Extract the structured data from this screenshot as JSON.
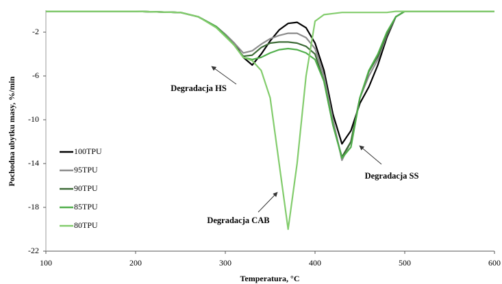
{
  "chart_data": {
    "type": "line",
    "x_label": "Temperatura, °C",
    "y_label": "Pochodna ubytku masy, %/min",
    "annotations": [
      "Degradacja HS",
      "Degradacja SS",
      "Degradacja CAB"
    ],
    "x": [
      100,
      150,
      200,
      250,
      270,
      290,
      300,
      310,
      320,
      330,
      340,
      350,
      360,
      370,
      380,
      390,
      400,
      410,
      420,
      430,
      440,
      450,
      460,
      470,
      480,
      490,
      500,
      550,
      600
    ],
    "series": [
      {
        "name": "100TPU",
        "color": "#000000",
        "values": [
          -0.1,
          -0.1,
          -0.1,
          -0.2,
          -0.6,
          -1.5,
          -2.2,
          -3.0,
          -4.3,
          -5.0,
          -4.0,
          -2.8,
          -1.8,
          -1.2,
          -1.1,
          -1.6,
          -3.0,
          -5.5,
          -9.5,
          -12.2,
          -11.0,
          -8.5,
          -7.0,
          -5.0,
          -2.5,
          -0.6,
          -0.1,
          -0.1,
          -0.1
        ]
      },
      {
        "name": "95TPU",
        "color": "#8c8c8c",
        "values": [
          -0.1,
          -0.1,
          -0.1,
          -0.2,
          -0.6,
          -1.5,
          -2.2,
          -3.0,
          -3.9,
          -3.7,
          -3.1,
          -2.6,
          -2.3,
          -2.1,
          -2.1,
          -2.5,
          -3.5,
          -6.0,
          -10.0,
          -13.7,
          -12.0,
          -8.0,
          -6.0,
          -4.5,
          -2.3,
          -0.6,
          -0.1,
          -0.1,
          -0.1
        ]
      },
      {
        "name": "90TPU",
        "color": "#3d6b37",
        "values": [
          -0.1,
          -0.1,
          -0.1,
          -0.2,
          -0.6,
          -1.5,
          -2.3,
          -3.2,
          -4.2,
          -4.1,
          -3.4,
          -3.0,
          -2.9,
          -2.9,
          -3.0,
          -3.3,
          -4.0,
          -6.5,
          -10.5,
          -13.4,
          -12.0,
          -8.0,
          -5.6,
          -4.2,
          -2.2,
          -0.6,
          -0.1,
          -0.1,
          -0.1
        ]
      },
      {
        "name": "85TPU",
        "color": "#4fae4a",
        "values": [
          -0.1,
          -0.1,
          -0.1,
          -0.2,
          -0.6,
          -1.5,
          -2.3,
          -3.2,
          -4.3,
          -4.5,
          -4.3,
          -3.9,
          -3.6,
          -3.5,
          -3.6,
          -3.9,
          -4.5,
          -6.5,
          -10.5,
          -13.5,
          -12.5,
          -8.0,
          -5.5,
          -4.0,
          -2.0,
          -0.6,
          -0.1,
          -0.1,
          -0.1
        ]
      },
      {
        "name": "80TPU",
        "color": "#82cc6c",
        "values": [
          -0.1,
          -0.1,
          -0.1,
          -0.2,
          -0.6,
          -1.6,
          -2.4,
          -3.2,
          -4.3,
          -4.6,
          -5.5,
          -8.0,
          -14.0,
          -20.0,
          -14.0,
          -6.0,
          -1.0,
          -0.4,
          -0.3,
          -0.2,
          -0.2,
          -0.2,
          -0.2,
          -0.2,
          -0.2,
          -0.1,
          -0.1,
          -0.1,
          -0.1
        ]
      }
    ],
    "xlim": [
      100,
      600
    ],
    "xticks": [
      100,
      200,
      300,
      400,
      500,
      600
    ],
    "ylim": [
      -22,
      0
    ],
    "yticks": [
      -22,
      -18,
      -14,
      -10,
      -6,
      -2
    ],
    "grid": false,
    "legend": "left"
  }
}
